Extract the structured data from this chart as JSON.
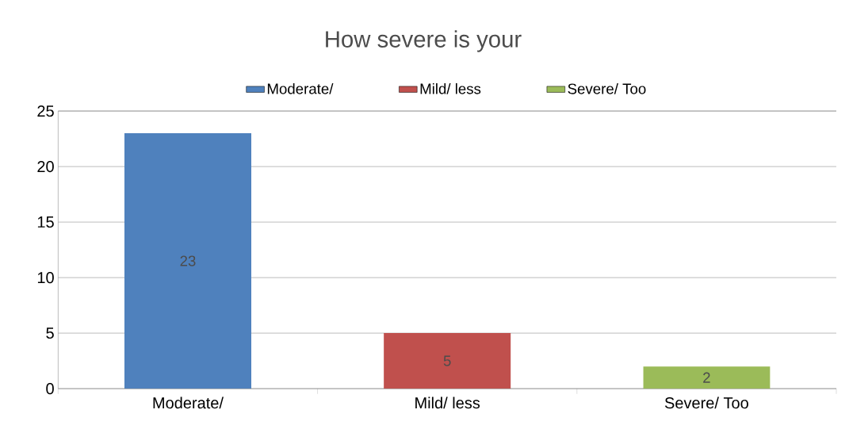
{
  "chart_data": {
    "type": "bar",
    "title": "How severe is your",
    "categories": [
      "Moderate/",
      "Mild/ less",
      "Severe/ Too"
    ],
    "series": [
      {
        "name": "Moderate/",
        "color": "#4f81bd",
        "values": [
          23,
          null,
          null
        ]
      },
      {
        "name": "Mild/ less",
        "color": "#c0504d",
        "values": [
          null,
          5,
          null
        ]
      },
      {
        "name": "Severe/ Too",
        "color": "#9bbb59",
        "values": [
          null,
          null,
          2
        ]
      }
    ],
    "ylim": [
      0,
      25
    ],
    "yticks": [
      0,
      5,
      10,
      15,
      20,
      25
    ],
    "grid": "y",
    "legend": "top",
    "data_labels": true
  }
}
